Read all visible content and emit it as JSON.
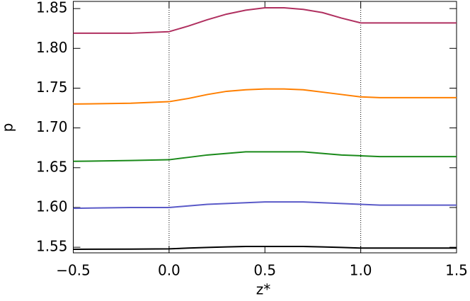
{
  "chart_data": {
    "type": "line",
    "xlabel": "z*",
    "ylabel": "p",
    "x": [
      -0.5,
      -0.2,
      0,
      0.1,
      0.2,
      0.3,
      0.4,
      0.5,
      0.6,
      0.7,
      0.8,
      0.9,
      1.0,
      1.1,
      1.5
    ],
    "series": [
      {
        "color": "#b03060",
        "values": [
          1.819,
          1.819,
          1.821,
          1.828,
          1.836,
          1.843,
          1.848,
          1.851,
          1.851,
          1.849,
          1.845,
          1.838,
          1.832,
          1.832,
          1.832
        ]
      },
      {
        "color": "#ff7f00",
        "values": [
          1.73,
          1.731,
          1.733,
          1.737,
          1.742,
          1.746,
          1.748,
          1.749,
          1.749,
          1.748,
          1.745,
          1.742,
          1.739,
          1.738,
          1.738
        ]
      },
      {
        "color": "#1a8a1a",
        "values": [
          1.658,
          1.659,
          1.66,
          1.663,
          1.666,
          1.668,
          1.67,
          1.67,
          1.67,
          1.67,
          1.668,
          1.666,
          1.665,
          1.664,
          1.664
        ]
      },
      {
        "color": "#5a5ac8",
        "values": [
          1.599,
          1.6,
          1.6,
          1.602,
          1.604,
          1.605,
          1.606,
          1.607,
          1.607,
          1.607,
          1.606,
          1.605,
          1.604,
          1.603,
          1.603
        ]
      },
      {
        "color": "#000000",
        "values": [
          1.5475,
          1.5477,
          1.548,
          1.549,
          1.5498,
          1.5505,
          1.551,
          1.551,
          1.551,
          1.551,
          1.5505,
          1.5498,
          1.549,
          1.549,
          1.549
        ]
      }
    ],
    "vlines": [
      0,
      1
    ],
    "xlim": [
      -0.5,
      1.5
    ],
    "xticks": [
      {
        "value": -0.5,
        "label": "−0.5"
      },
      {
        "value": 0,
        "label": "0.0"
      },
      0.5,
      {
        "value": 1,
        "label": "1.0"
      },
      1.5
    ],
    "ylim": [
      1.543,
      1.859
    ],
    "yticks": [
      1.55,
      {
        "value": 1.6,
        "label": "1.60"
      },
      1.65,
      {
        "value": 1.7,
        "label": "1.70"
      },
      1.75,
      {
        "value": 1.8,
        "label": "1.80"
      },
      1.85
    ]
  }
}
